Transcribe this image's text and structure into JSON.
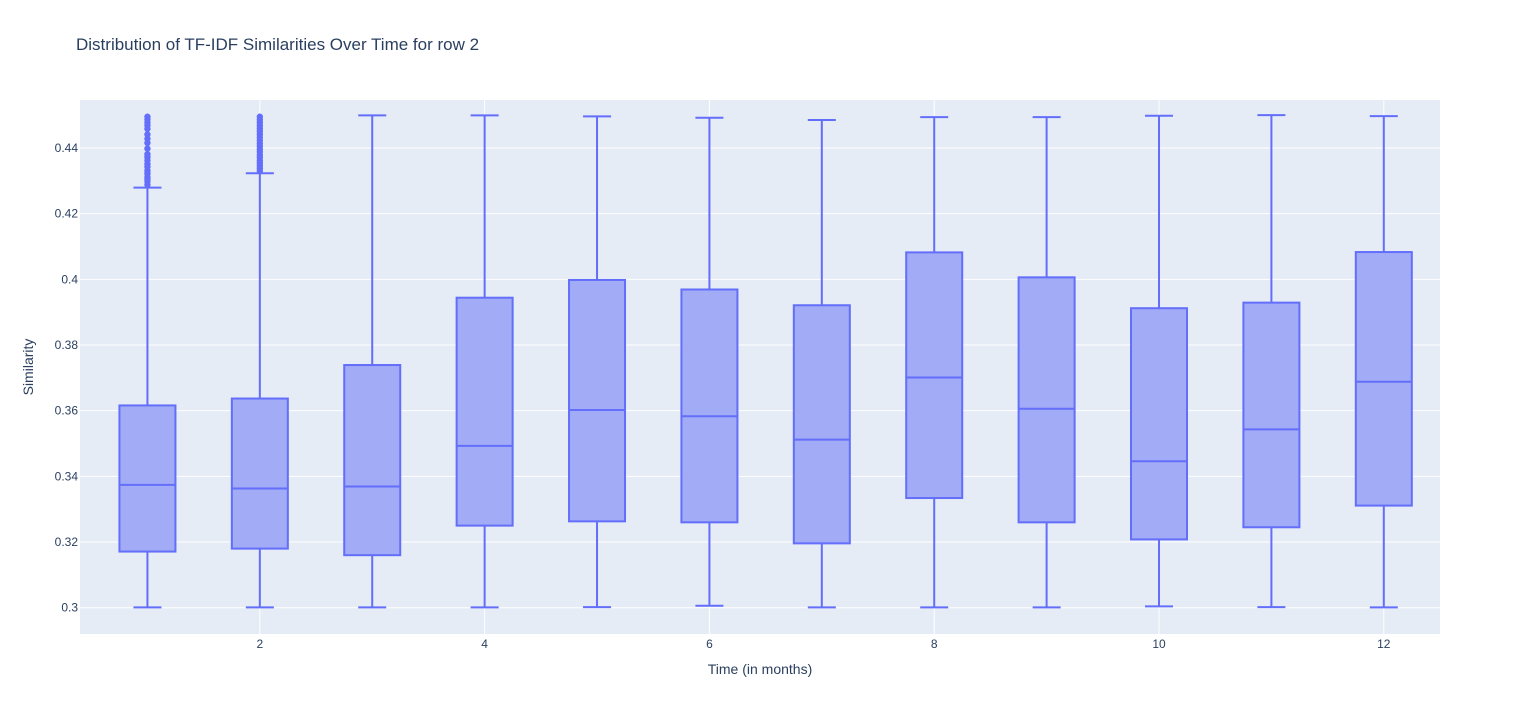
{
  "chart_data": {
    "type": "box",
    "title": "Distribution of TF-IDF Similarities Over Time for row 2",
    "xlabel": "Time (in months)",
    "ylabel": "Similarity",
    "xlim": [
      0.4,
      12.5
    ],
    "ylim": [
      0.292,
      0.4546
    ],
    "grid": true,
    "colors": {
      "plot_bg": "#e5ecf6",
      "grid": "#ffffff",
      "box_fill": "#a2abf5",
      "box_line": "#636efa",
      "text": "#2a3f5f"
    },
    "x_ticks": [
      2,
      4,
      6,
      8,
      10,
      12
    ],
    "x_tick_labels": [
      "2",
      "4",
      "6",
      "8",
      "10",
      "12"
    ],
    "y_ticks": [
      0.3,
      0.32,
      0.34,
      0.36,
      0.38,
      0.4,
      0.42,
      0.44
    ],
    "y_tick_labels": [
      "0.3",
      "0.32",
      "0.34",
      "0.36",
      "0.38",
      "0.4",
      "0.42",
      "0.44"
    ],
    "boxes": [
      {
        "x": 1,
        "min": 0.3001,
        "q1": 0.3171,
        "median": 0.3374,
        "q3": 0.3616,
        "max": 0.4279,
        "outliers": [
          0.4288,
          0.4298,
          0.4305,
          0.4312,
          0.4322,
          0.4331,
          0.4342,
          0.4351,
          0.4362,
          0.4372,
          0.4381,
          0.4398,
          0.4415,
          0.4428,
          0.4441,
          0.4458,
          0.4469,
          0.4478,
          0.4487,
          0.4495
        ]
      },
      {
        "x": 2,
        "min": 0.3001,
        "q1": 0.318,
        "median": 0.3363,
        "q3": 0.3637,
        "max": 0.4323,
        "outliers": [
          0.433,
          0.4338,
          0.4346,
          0.4354,
          0.4362,
          0.4371,
          0.4379,
          0.4388,
          0.4396,
          0.4405,
          0.4414,
          0.4423,
          0.4432,
          0.4441,
          0.445,
          0.4459,
          0.4468,
          0.4477,
          0.4486,
          0.4495
        ]
      },
      {
        "x": 3,
        "min": 0.3001,
        "q1": 0.316,
        "median": 0.3369,
        "q3": 0.3739,
        "max": 0.4499,
        "outliers": []
      },
      {
        "x": 4,
        "min": 0.3001,
        "q1": 0.325,
        "median": 0.3493,
        "q3": 0.3944,
        "max": 0.4499,
        "outliers": []
      },
      {
        "x": 5,
        "min": 0.3002,
        "q1": 0.3263,
        "median": 0.3602,
        "q3": 0.3998,
        "max": 0.4496,
        "outliers": []
      },
      {
        "x": 6,
        "min": 0.3006,
        "q1": 0.326,
        "median": 0.3583,
        "q3": 0.3969,
        "max": 0.4492,
        "outliers": []
      },
      {
        "x": 7,
        "min": 0.3001,
        "q1": 0.3196,
        "median": 0.3512,
        "q3": 0.3921,
        "max": 0.4485,
        "outliers": []
      },
      {
        "x": 8,
        "min": 0.3001,
        "q1": 0.3334,
        "median": 0.3701,
        "q3": 0.4082,
        "max": 0.4494,
        "outliers": []
      },
      {
        "x": 9,
        "min": 0.3001,
        "q1": 0.326,
        "median": 0.3606,
        "q3": 0.4006,
        "max": 0.4494,
        "outliers": []
      },
      {
        "x": 10,
        "min": 0.3004,
        "q1": 0.3208,
        "median": 0.3446,
        "q3": 0.3912,
        "max": 0.4498,
        "outliers": []
      },
      {
        "x": 11,
        "min": 0.3002,
        "q1": 0.3245,
        "median": 0.3543,
        "q3": 0.3929,
        "max": 0.45,
        "outliers": []
      },
      {
        "x": 12,
        "min": 0.3001,
        "q1": 0.3311,
        "median": 0.3688,
        "q3": 0.4083,
        "max": 0.4497,
        "outliers": []
      }
    ]
  }
}
